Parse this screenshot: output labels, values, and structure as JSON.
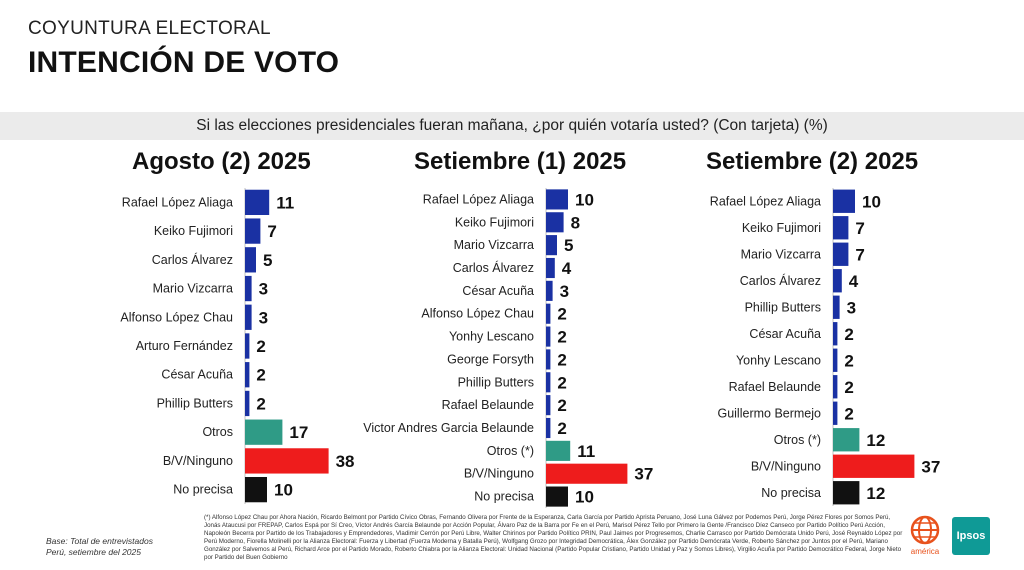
{
  "header": {
    "kicker": "COYUNTURA ELECTORAL",
    "title": "INTENCIÓN DE VOTO"
  },
  "question": "Si las elecciones presidenciales fueran mañana, ¿por quién votaría usted? (Con tarjeta) (%)",
  "colors": {
    "candidate": "#1a31a3",
    "otros": "#2f9b86",
    "ninguno": "#ee1c1c",
    "no_precisa": "#111111"
  },
  "chart_data": [
    {
      "type": "bar",
      "title": "Agosto (2) 2025",
      "categories": [
        "Rafael López Aliaga",
        "Keiko Fujimori",
        "Carlos Álvarez",
        "Mario Vizcarra",
        "Alfonso López Chau",
        "Arturo Fernández",
        "César Acuña",
        "Phillip Butters",
        "Otros",
        "B/V/Ninguno",
        "No precisa"
      ],
      "values": [
        11,
        7,
        5,
        3,
        3,
        2,
        2,
        2,
        17,
        38,
        10
      ],
      "kinds": [
        "candidate",
        "candidate",
        "candidate",
        "candidate",
        "candidate",
        "candidate",
        "candidate",
        "candidate",
        "otros",
        "ninguno",
        "no_precisa"
      ]
    },
    {
      "type": "bar",
      "title": "Setiembre (1) 2025",
      "categories": [
        "Rafael López Aliaga",
        "Keiko Fujimori",
        "Mario Vizcarra",
        "Carlos Álvarez",
        "César Acuña",
        "Alfonso López Chau",
        "Yonhy Lescano",
        "George Forsyth",
        "Phillip Butters",
        "Rafael Belaunde",
        "Victor Andres Garcia Belaunde",
        "Otros (*)",
        "B/V/Ninguno",
        "No precisa"
      ],
      "values": [
        10,
        8,
        5,
        4,
        3,
        2,
        2,
        2,
        2,
        2,
        2,
        11,
        37,
        10
      ],
      "kinds": [
        "candidate",
        "candidate",
        "candidate",
        "candidate",
        "candidate",
        "candidate",
        "candidate",
        "candidate",
        "candidate",
        "candidate",
        "candidate",
        "otros",
        "ninguno",
        "no_precisa"
      ]
    },
    {
      "type": "bar",
      "title": "Setiembre (2) 2025",
      "categories": [
        "Rafael López Aliaga",
        "Keiko Fujimori",
        "Mario Vizcarra",
        "Carlos Álvarez",
        "Phillip Butters",
        "César Acuña",
        "Yonhy Lescano",
        "Rafael Belaunde",
        "Guillermo Bermejo",
        "Otros (*)",
        "B/V/Ninguno",
        "No precisa"
      ],
      "values": [
        10,
        7,
        7,
        4,
        3,
        2,
        2,
        2,
        2,
        12,
        37,
        12
      ],
      "kinds": [
        "candidate",
        "candidate",
        "candidate",
        "candidate",
        "candidate",
        "candidate",
        "candidate",
        "candidate",
        "candidate",
        "otros",
        "ninguno",
        "no_precisa"
      ]
    }
  ],
  "footnote": "(*) Alfonso López Chau por Ahora Nación, Ricardo Belmont por Partido Cívico Obras, Fernando Olivera por Frente de la Esperanza, Carla García por Partido Aprista Peruano, José Luna Gálvez por Podemos Perú, Jorge Pérez Flores por Somos Perú, Jonás Ataucusi por FREPAP, Carlos Espá por Sí Creo, Víctor Andrés García Belaunde por Acción Popular, Álvaro Paz de la Barra por Fe en el Perú, Marisol Pérez Tello por Primero la Gente /Francisco Díez Canseco por Partido Político Perú Acción, Napoleón Becerra por Partido de los Trabajadores y Emprendedores, Vladimir Cerrón por Perú Libre, Walter Chirinos por Partido Político PRIN, Paul Jaimes por Progresemos, Charlie Carrasco por Partido Demócrata Unido Perú, José Reynaldo López por Perú Moderno, Fiorella Molinelli por la Alianza Electoral: Fuerza y Libertad (Fuerza Moderna y Batalla Perú), Wolfgang Grozo por Integridad Democrática, Álex González por Partido Demócrata Verde, Roberto Sánchez por Juntos por el Perú, Mariano González por Salvemos al Perú, Richard Arce por el Partido Morado, Roberto Chiabra por la Alianza Electoral: Unidad Nacional (Partido Popular Cristiano, Partido Unidad y Paz y Somos Libres), Virgilio Acuña por Partido Democrático Federal, Jorge Nieto por Partido del Buen Gobierno",
  "base_note": "Base: Total de entrevistados\nPerú, setiembre del 2025",
  "logos": {
    "america": "américa",
    "ipsos": "Ipsos"
  }
}
